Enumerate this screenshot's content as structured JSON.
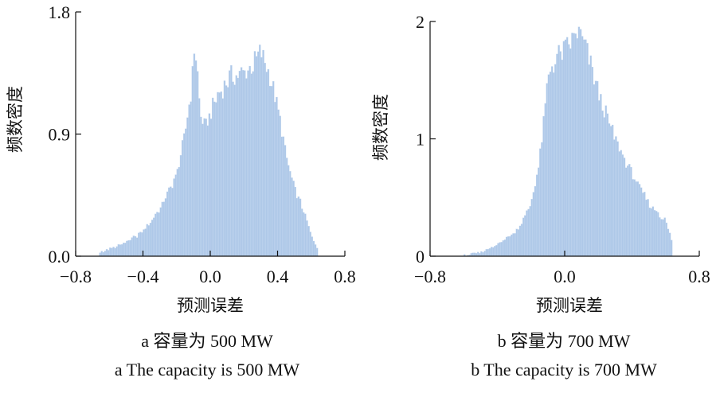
{
  "chart_data": [
    {
      "type": "bar",
      "panel_id": "a",
      "xlabel": "预测误差",
      "ylabel": "频数密度",
      "xlim": [
        -0.8,
        0.8
      ],
      "ylim": [
        0,
        1.8
      ],
      "xticks": [
        -0.8,
        -0.4,
        0.0,
        0.4,
        0.8
      ],
      "xtick_labels": [
        "−0.8",
        "−0.4",
        "0.0",
        "0.4",
        "0.8"
      ],
      "yticks": [
        0,
        0.9,
        1.8
      ],
      "ytick_labels": [
        "0.0",
        "0.9",
        "1.8"
      ],
      "bin_width": 0.01,
      "anchors": [
        [
          -0.66,
          0.03
        ],
        [
          -0.6,
          0.05
        ],
        [
          -0.5,
          0.1
        ],
        [
          -0.4,
          0.18
        ],
        [
          -0.3,
          0.35
        ],
        [
          -0.2,
          0.6
        ],
        [
          -0.15,
          0.9
        ],
        [
          -0.11,
          1.25
        ],
        [
          -0.095,
          1.52
        ],
        [
          -0.08,
          1.45
        ],
        [
          -0.06,
          1.05
        ],
        [
          -0.03,
          0.95
        ],
        [
          0.0,
          1.05
        ],
        [
          0.05,
          1.2
        ],
        [
          0.12,
          1.32
        ],
        [
          0.2,
          1.35
        ],
        [
          0.25,
          1.4
        ],
        [
          0.3,
          1.5
        ],
        [
          0.35,
          1.35
        ],
        [
          0.4,
          1.1
        ],
        [
          0.45,
          0.75
        ],
        [
          0.5,
          0.5
        ],
        [
          0.55,
          0.35
        ],
        [
          0.6,
          0.15
        ],
        [
          0.64,
          0.05
        ]
      ],
      "range": [
        -0.66,
        0.64
      ],
      "caption_cn": "a  容量为 500 MW",
      "caption_en": "a  The capacity is 500 MW"
    },
    {
      "type": "bar",
      "panel_id": "b",
      "xlabel": "预测误差",
      "ylabel": "频数密度",
      "xlim": [
        -0.8,
        0.8
      ],
      "ylim": [
        0,
        2
      ],
      "xticks": [
        -0.8,
        0.0,
        0.8
      ],
      "xtick_labels": [
        "−0.8",
        "0.0",
        "0.8"
      ],
      "yticks": [
        0,
        1,
        2
      ],
      "ytick_labels": [
        "0",
        "1",
        "2"
      ],
      "bin_width": 0.01,
      "anchors": [
        [
          -0.6,
          0.005
        ],
        [
          -0.5,
          0.03
        ],
        [
          -0.4,
          0.1
        ],
        [
          -0.3,
          0.2
        ],
        [
          -0.25,
          0.3
        ],
        [
          -0.2,
          0.45
        ],
        [
          -0.15,
          0.8
        ],
        [
          -0.12,
          1.2
        ],
        [
          -0.1,
          1.5
        ],
        [
          -0.08,
          1.62
        ],
        [
          -0.06,
          1.65
        ],
        [
          -0.04,
          1.7
        ],
        [
          0.0,
          1.75
        ],
        [
          0.05,
          1.85
        ],
        [
          0.08,
          1.92
        ],
        [
          0.12,
          1.8
        ],
        [
          0.16,
          1.6
        ],
        [
          0.22,
          1.3
        ],
        [
          0.3,
          1.0
        ],
        [
          0.4,
          0.7
        ],
        [
          0.5,
          0.45
        ],
        [
          0.6,
          0.3
        ],
        [
          0.64,
          0.12
        ]
      ],
      "range": [
        -0.6,
        0.64
      ],
      "caption_cn": "b  容量为 700 MW",
      "caption_en": "b  The capacity is 700 MW"
    }
  ]
}
